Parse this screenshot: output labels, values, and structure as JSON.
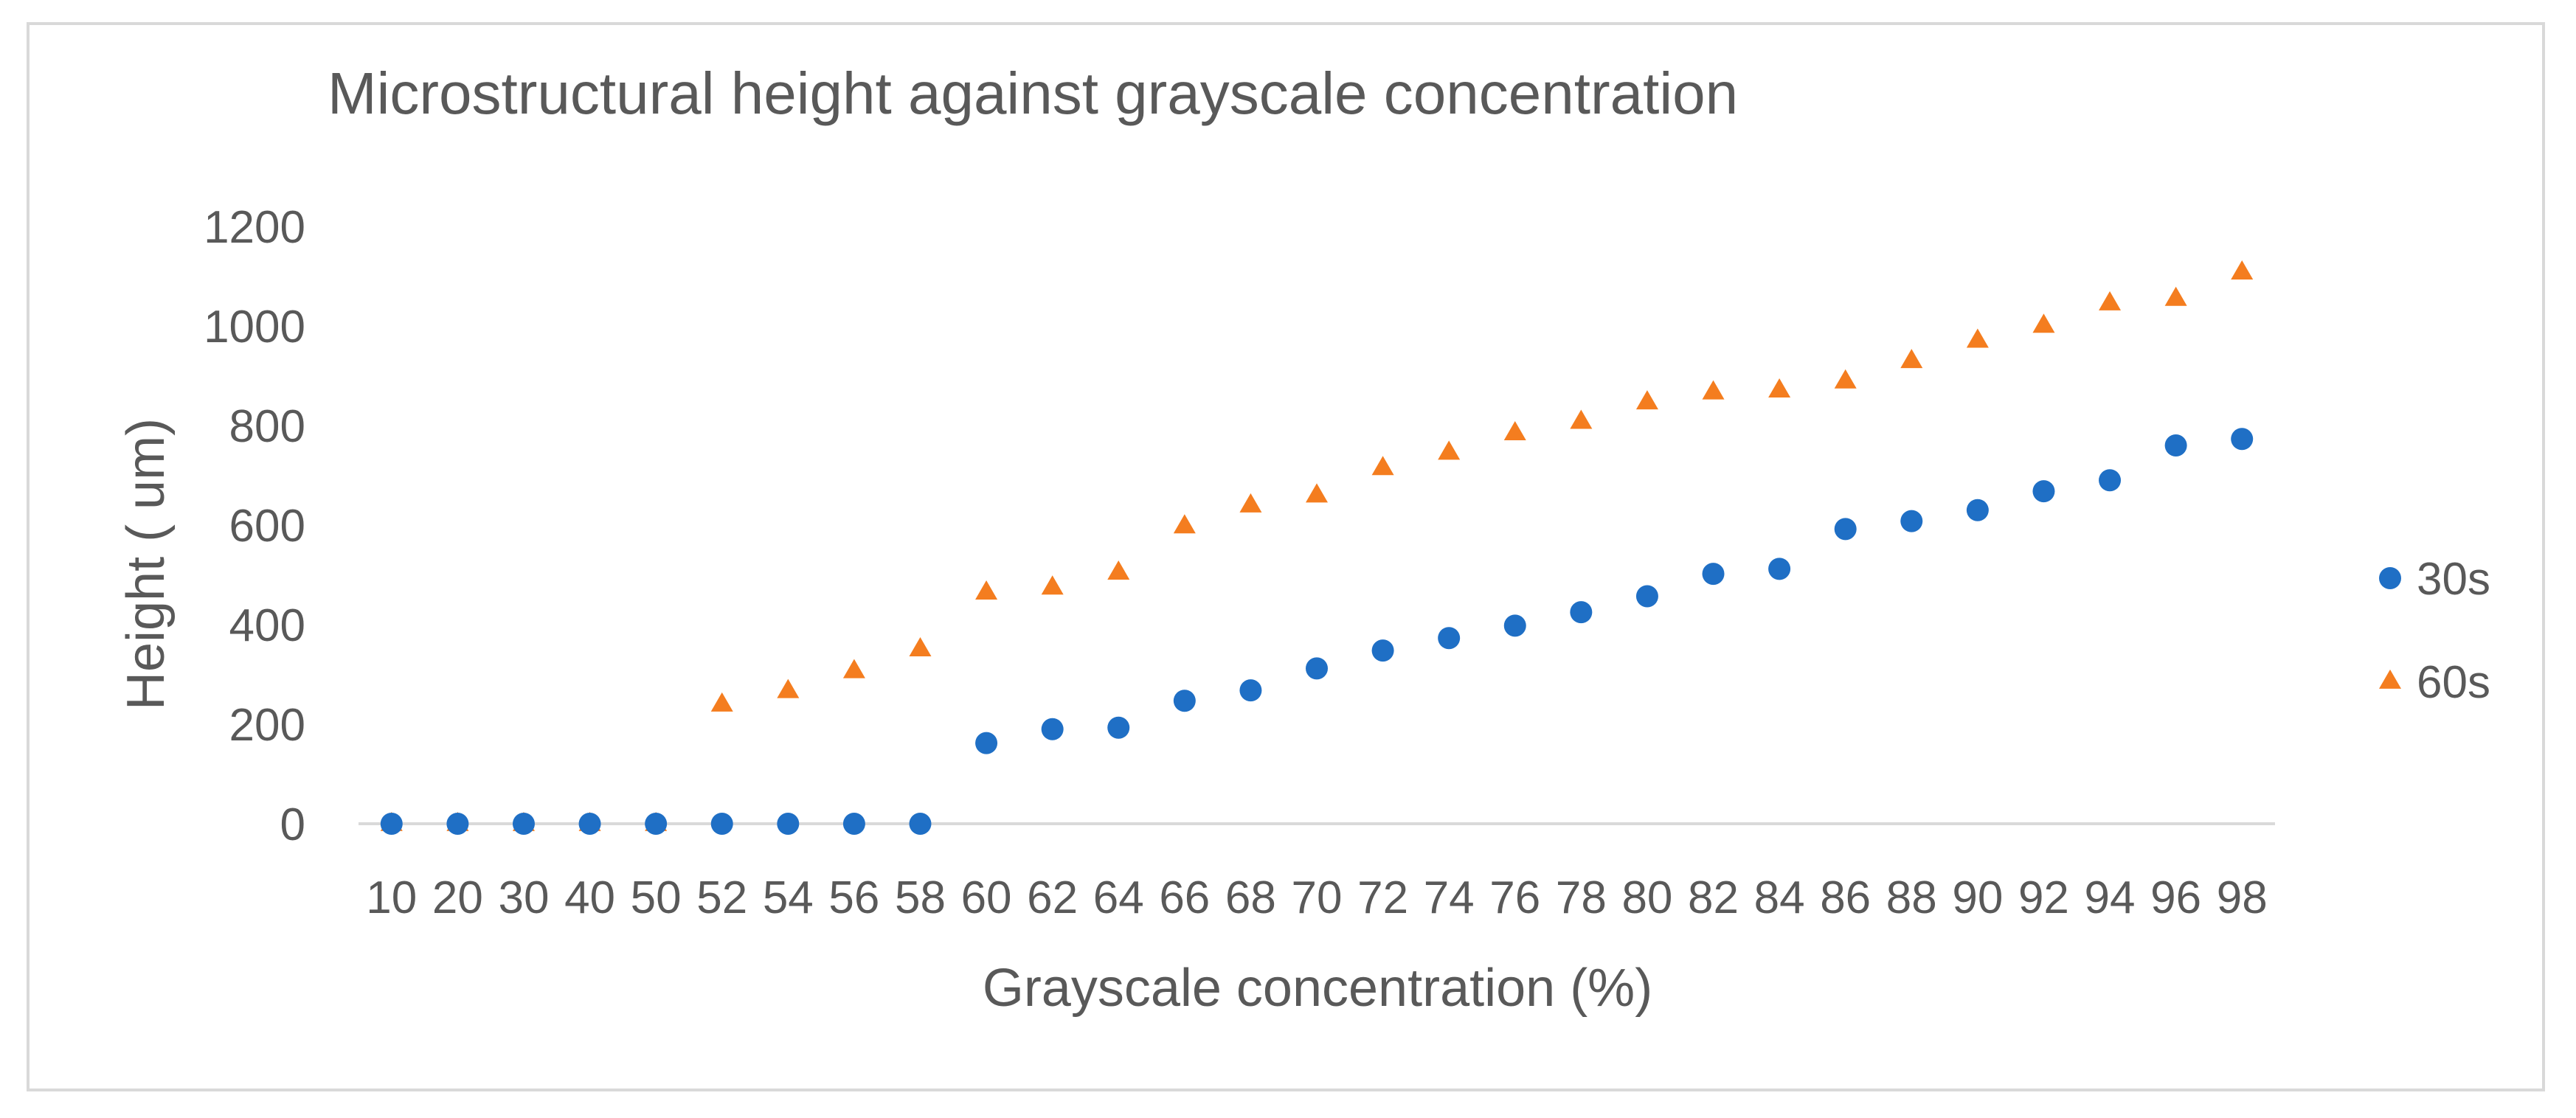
{
  "chart_data": {
    "type": "scatter",
    "title": "Microstructural height against grayscale concentration",
    "xlabel": "Grayscale concentration (%)",
    "ylabel": "Height ( um)",
    "categories": [
      "10",
      "20",
      "30",
      "40",
      "50",
      "52",
      "54",
      "56",
      "58",
      "60",
      "62",
      "64",
      "66",
      "68",
      "70",
      "72",
      "74",
      "76",
      "78",
      "80",
      "82",
      "84",
      "86",
      "88",
      "90",
      "92",
      "94",
      "96",
      "98"
    ],
    "yticks": [
      "0",
      "200",
      "400",
      "600",
      "800",
      "1000",
      "1200"
    ],
    "ylim": [
      0,
      1200
    ],
    "grid": false,
    "legend_position": "right",
    "series": [
      {
        "name": "30s",
        "marker": "circle",
        "color": "#1f6fc5",
        "values": [
          0,
          0,
          0,
          0,
          0,
          0,
          0,
          0,
          0,
          162,
          190,
          193,
          247,
          268,
          312,
          348,
          373,
          398,
          425,
          457,
          502,
          512,
          592,
          608,
          630,
          668,
          690,
          760,
          773
        ]
      },
      {
        "name": "60s",
        "marker": "triangle",
        "color": "#f47d1f",
        "values": [
          0,
          0,
          0,
          0,
          0,
          240,
          267,
          307,
          351,
          465,
          475,
          505,
          598,
          640,
          660,
          715,
          746,
          785,
          808,
          847,
          867,
          871,
          889,
          930,
          971,
          1001,
          1046,
          1055,
          1108
        ]
      }
    ]
  }
}
